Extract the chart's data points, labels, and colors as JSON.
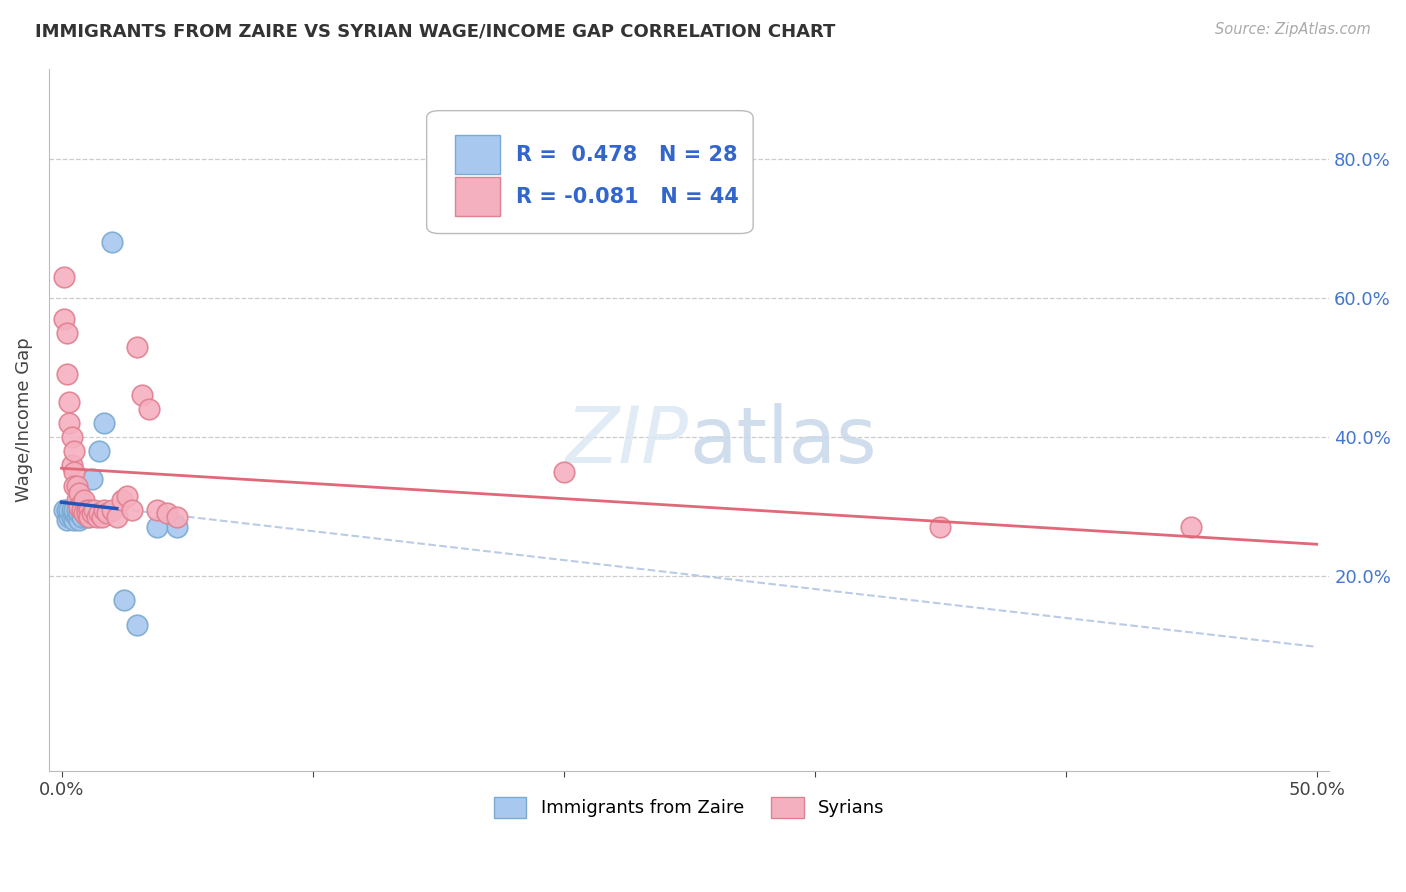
{
  "title": "IMMIGRANTS FROM ZAIRE VS SYRIAN WAGE/INCOME GAP CORRELATION CHART",
  "source": "Source: ZipAtlas.com",
  "ylabel": "Wage/Income Gap",
  "zaire_color": "#a8c8f0",
  "zaire_edge_color": "#7aaad0",
  "syrian_color": "#f5b0c0",
  "syrian_edge_color": "#e08090",
  "legend_zaire_label": "Immigrants from Zaire",
  "legend_syrian_label": "Syrians",
  "R_zaire": 0.478,
  "N_zaire": 28,
  "R_syrian": -0.081,
  "N_syrian": 44,
  "zaire_x": [
    0.001,
    0.002,
    0.002,
    0.003,
    0.003,
    0.004,
    0.004,
    0.005,
    0.005,
    0.005,
    0.006,
    0.006,
    0.007,
    0.007,
    0.008,
    0.008,
    0.009,
    0.01,
    0.01,
    0.011,
    0.012,
    0.015,
    0.017,
    0.02,
    0.025,
    0.03,
    0.038,
    0.046
  ],
  "zaire_y": [
    0.295,
    0.28,
    0.295,
    0.285,
    0.295,
    0.285,
    0.295,
    0.28,
    0.29,
    0.295,
    0.285,
    0.295,
    0.28,
    0.29,
    0.285,
    0.295,
    0.29,
    0.285,
    0.295,
    0.29,
    0.34,
    0.38,
    0.42,
    0.68,
    0.165,
    0.13,
    0.27,
    0.27
  ],
  "syrian_x": [
    0.001,
    0.001,
    0.002,
    0.002,
    0.003,
    0.003,
    0.004,
    0.004,
    0.005,
    0.005,
    0.005,
    0.006,
    0.006,
    0.007,
    0.007,
    0.008,
    0.008,
    0.009,
    0.009,
    0.01,
    0.01,
    0.011,
    0.011,
    0.012,
    0.013,
    0.014,
    0.015,
    0.016,
    0.017,
    0.018,
    0.02,
    0.022,
    0.024,
    0.026,
    0.028,
    0.03,
    0.032,
    0.035,
    0.038,
    0.042,
    0.046,
    0.2,
    0.35,
    0.45
  ],
  "syrian_y": [
    0.63,
    0.57,
    0.55,
    0.49,
    0.45,
    0.42,
    0.4,
    0.36,
    0.38,
    0.35,
    0.33,
    0.33,
    0.31,
    0.32,
    0.3,
    0.305,
    0.295,
    0.31,
    0.29,
    0.295,
    0.29,
    0.295,
    0.285,
    0.29,
    0.295,
    0.285,
    0.29,
    0.285,
    0.295,
    0.29,
    0.295,
    0.285,
    0.31,
    0.315,
    0.295,
    0.53,
    0.46,
    0.44,
    0.295,
    0.29,
    0.285,
    0.35,
    0.27,
    0.27
  ],
  "xlim": [
    -0.005,
    0.505
  ],
  "ylim": [
    -0.08,
    0.93
  ],
  "xticks": [
    0.0,
    0.1,
    0.2,
    0.3,
    0.4,
    0.5
  ],
  "xtick_labels": [
    "0.0%",
    "",
    "",
    "",
    "",
    "50.0%"
  ],
  "yticks": [
    0.2,
    0.4,
    0.6,
    0.8
  ],
  "ytick_labels": [
    "20.0%",
    "40.0%",
    "60.0%",
    "80.0%"
  ]
}
